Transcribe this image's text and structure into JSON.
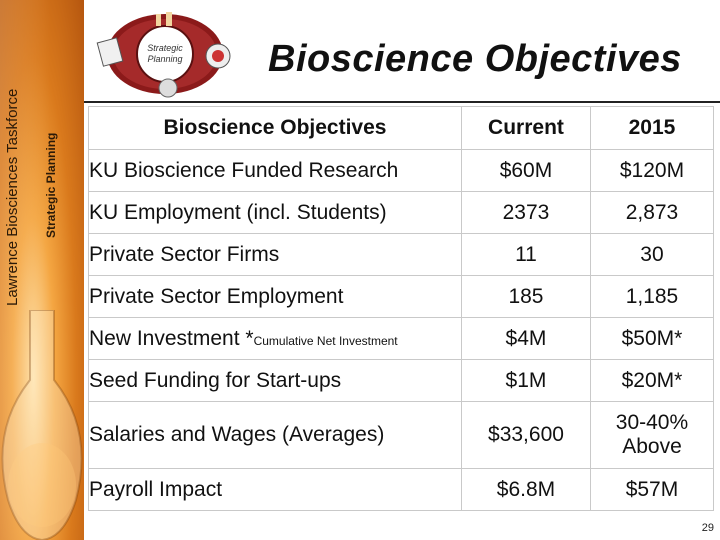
{
  "sidebar": {
    "org_name": "Lawrence Biosciences Taskforce",
    "subtitle": "Strategic Planning"
  },
  "logo": {
    "text_line1": "Strategic",
    "text_line2": "Planning"
  },
  "header": {
    "title": "Bioscience Objectives"
  },
  "table": {
    "headers": [
      "Bioscience Objectives",
      "Current",
      "2015"
    ],
    "rows": [
      {
        "objective": "KU Bioscience Funded Research",
        "current": "$60M",
        "target": "$120M"
      },
      {
        "objective": "KU Employment (incl. Students)",
        "current": "2373",
        "target": "2,873"
      },
      {
        "objective": "Private Sector Firms",
        "current": "11",
        "target": "30"
      },
      {
        "objective": "Private Sector Employment",
        "current": "185",
        "target": "1,185"
      },
      {
        "objective": "New Investment *",
        "objective_note": "Cumulative Net Investment",
        "current": "$4M",
        "target": "$50M*"
      },
      {
        "objective": "Seed Funding for Start-ups",
        "current": "$1M",
        "target": "$20M*"
      },
      {
        "objective": "Salaries and Wages (Averages)",
        "current": "$33,600",
        "target_line1": "30-40%",
        "target_line2": "Above"
      },
      {
        "objective": "Payroll Impact",
        "current": "$6.8M",
        "target": "$57M"
      }
    ]
  },
  "page_number": "29",
  "colors": {
    "band_orange": "#d9791c",
    "band_light": "#ffe1a8",
    "text": "#111111"
  }
}
